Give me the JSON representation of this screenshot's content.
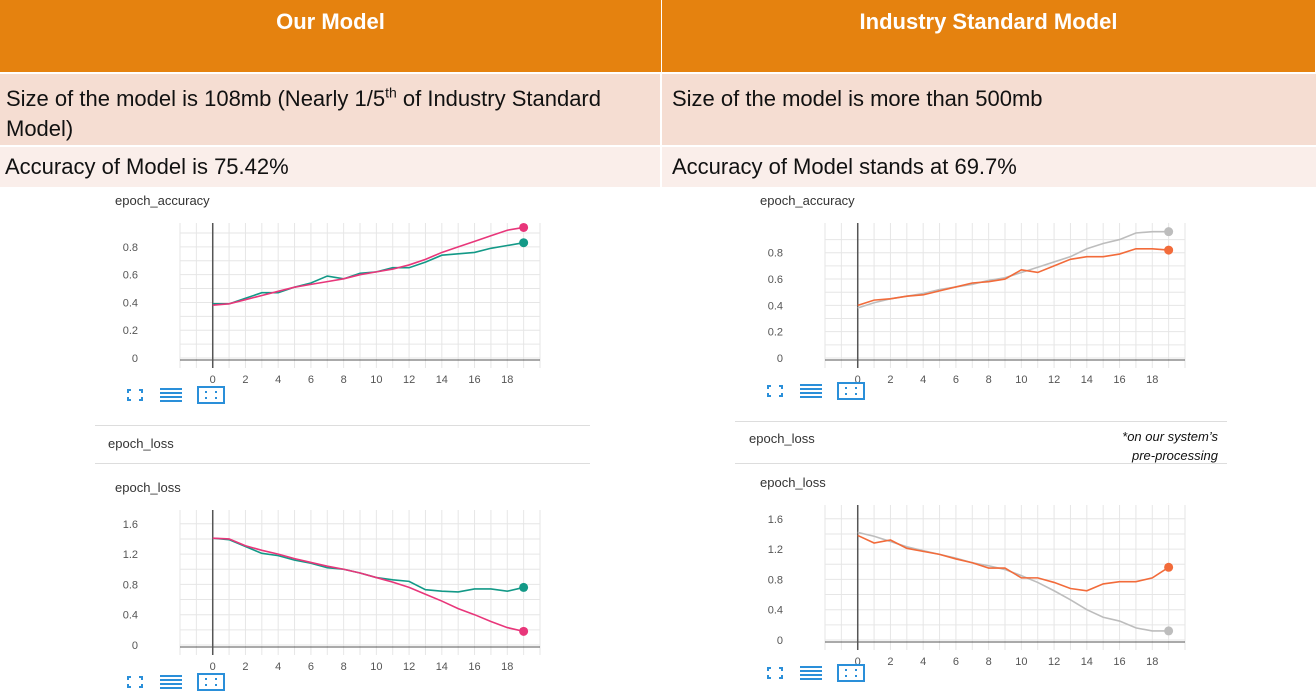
{
  "table": {
    "col1_header": "Our Model",
    "col2_header": "Industry Standard Model",
    "col1_size_prefix": "Size of the model is 108mb (Nearly 1/5",
    "col1_size_sup": "th",
    "col1_size_suffix": " of Industry Standard Model)",
    "col2_size": "Size of the model is more than 500mb",
    "col1_accuracy": "Accuracy of Model is 75.42%",
    "col2_accuracy": "Accuracy of Model stands at 69.7%"
  },
  "left_panel": {
    "section_label": "epoch_loss"
  },
  "right_panel": {
    "section_label": "epoch_loss"
  },
  "note": {
    "line1": "*on our system’s",
    "line2": "pre-processing"
  },
  "colors": {
    "header_orange": "#E5820F",
    "row1_bg": "#F5DDD2",
    "row2_bg": "#FAEEEA",
    "teal": "#139987",
    "pink": "#E8367A",
    "orange": "#F26B3A",
    "gray": "#BDBDBD",
    "icon_blue": "#2A8FD9"
  },
  "chart_data": [
    {
      "type": "line",
      "title": "epoch_accuracy",
      "x_ticks": [
        0,
        2,
        4,
        6,
        8,
        10,
        12,
        14,
        16,
        18
      ],
      "y_ticks": [
        "0",
        "0.2",
        "0.4",
        "0.6",
        "0.8"
      ],
      "xlim": [
        -2,
        20
      ],
      "ylim": [
        0,
        0.9
      ],
      "series": [
        {
          "color": "#139987",
          "x": [
            0,
            1,
            2,
            3,
            4,
            5,
            6,
            7,
            8,
            9,
            10,
            11,
            12,
            13,
            14,
            15,
            16,
            17,
            18,
            19
          ],
          "y": [
            0.39,
            0.39,
            0.43,
            0.47,
            0.47,
            0.51,
            0.54,
            0.59,
            0.57,
            0.61,
            0.62,
            0.65,
            0.65,
            0.69,
            0.74,
            0.75,
            0.76,
            0.79,
            0.81,
            0.83
          ]
        },
        {
          "color": "#E8367A",
          "x": [
            0,
            1,
            2,
            3,
            4,
            5,
            6,
            7,
            8,
            9,
            10,
            11,
            12,
            13,
            14,
            15,
            16,
            17,
            18,
            19
          ],
          "y": [
            0.38,
            0.39,
            0.42,
            0.45,
            0.48,
            0.51,
            0.53,
            0.55,
            0.57,
            0.6,
            0.62,
            0.64,
            0.67,
            0.71,
            0.76,
            0.8,
            0.84,
            0.88,
            0.92,
            0.94
          ]
        }
      ]
    },
    {
      "type": "line",
      "title": "epoch_loss",
      "x_ticks": [
        0,
        2,
        4,
        6,
        8,
        10,
        12,
        14,
        16,
        18
      ],
      "y_ticks": [
        "0",
        "0.4",
        "0.8",
        "1.2",
        "1.6"
      ],
      "xlim": [
        -2,
        20
      ],
      "ylim": [
        0,
        1.65
      ],
      "series": [
        {
          "color": "#139987",
          "x": [
            0,
            1,
            2,
            3,
            4,
            5,
            6,
            7,
            8,
            9,
            10,
            11,
            12,
            13,
            14,
            15,
            16,
            17,
            18,
            19
          ],
          "y": [
            1.41,
            1.39,
            1.3,
            1.21,
            1.18,
            1.12,
            1.08,
            1.02,
            1.0,
            0.95,
            0.89,
            0.86,
            0.84,
            0.73,
            0.71,
            0.7,
            0.74,
            0.74,
            0.71,
            0.76
          ]
        },
        {
          "color": "#E8367A",
          "x": [
            0,
            1,
            2,
            3,
            4,
            5,
            6,
            7,
            8,
            9,
            10,
            11,
            12,
            13,
            14,
            15,
            16,
            17,
            18,
            19
          ],
          "y": [
            1.41,
            1.4,
            1.31,
            1.25,
            1.2,
            1.14,
            1.09,
            1.04,
            1.0,
            0.95,
            0.89,
            0.83,
            0.76,
            0.67,
            0.58,
            0.48,
            0.4,
            0.31,
            0.23,
            0.18
          ]
        }
      ]
    },
    {
      "type": "line",
      "title": "epoch_accuracy",
      "x_ticks": [
        0,
        2,
        4,
        6,
        8,
        10,
        12,
        14,
        16,
        18
      ],
      "y_ticks": [
        "0",
        "0.2",
        "0.4",
        "0.6",
        "0.8"
      ],
      "xlim": [
        -2,
        20
      ],
      "ylim": [
        0,
        0.95
      ],
      "series": [
        {
          "color": "#BDBDBD",
          "x": [
            0,
            1,
            2,
            3,
            4,
            5,
            6,
            7,
            8,
            9,
            10,
            11,
            12,
            13,
            14,
            15,
            16,
            17,
            18,
            19
          ],
          "y": [
            0.38,
            0.42,
            0.45,
            0.47,
            0.49,
            0.52,
            0.54,
            0.56,
            0.59,
            0.61,
            0.65,
            0.69,
            0.73,
            0.77,
            0.83,
            0.87,
            0.9,
            0.95,
            0.96,
            0.96
          ]
        },
        {
          "color": "#F26B3A",
          "x": [
            0,
            1,
            2,
            3,
            4,
            5,
            6,
            7,
            8,
            9,
            10,
            11,
            12,
            13,
            14,
            15,
            16,
            17,
            18,
            19
          ],
          "y": [
            0.4,
            0.44,
            0.45,
            0.47,
            0.48,
            0.51,
            0.54,
            0.57,
            0.58,
            0.6,
            0.67,
            0.65,
            0.7,
            0.75,
            0.77,
            0.77,
            0.79,
            0.83,
            0.83,
            0.82
          ]
        }
      ]
    },
    {
      "type": "line",
      "title": "epoch_loss",
      "x_ticks": [
        0,
        2,
        4,
        6,
        8,
        10,
        12,
        14,
        16,
        18
      ],
      "y_ticks": [
        "0",
        "0.4",
        "0.8",
        "1.2",
        "1.6"
      ],
      "xlim": [
        -2,
        20
      ],
      "ylim": [
        0,
        1.65
      ],
      "series": [
        {
          "color": "#BDBDBD",
          "x": [
            0,
            1,
            2,
            3,
            4,
            5,
            6,
            7,
            8,
            9,
            10,
            11,
            12,
            13,
            14,
            15,
            16,
            17,
            18,
            19
          ],
          "y": [
            1.42,
            1.37,
            1.3,
            1.23,
            1.18,
            1.13,
            1.08,
            1.02,
            0.98,
            0.93,
            0.85,
            0.76,
            0.65,
            0.53,
            0.4,
            0.3,
            0.25,
            0.16,
            0.12,
            0.12
          ]
        },
        {
          "color": "#F26B3A",
          "x": [
            0,
            1,
            2,
            3,
            4,
            5,
            6,
            7,
            8,
            9,
            10,
            11,
            12,
            13,
            14,
            15,
            16,
            17,
            18,
            19
          ],
          "y": [
            1.38,
            1.28,
            1.32,
            1.21,
            1.17,
            1.13,
            1.07,
            1.02,
            0.95,
            0.95,
            0.82,
            0.82,
            0.76,
            0.68,
            0.65,
            0.74,
            0.77,
            0.77,
            0.82,
            0.96
          ]
        }
      ]
    }
  ]
}
